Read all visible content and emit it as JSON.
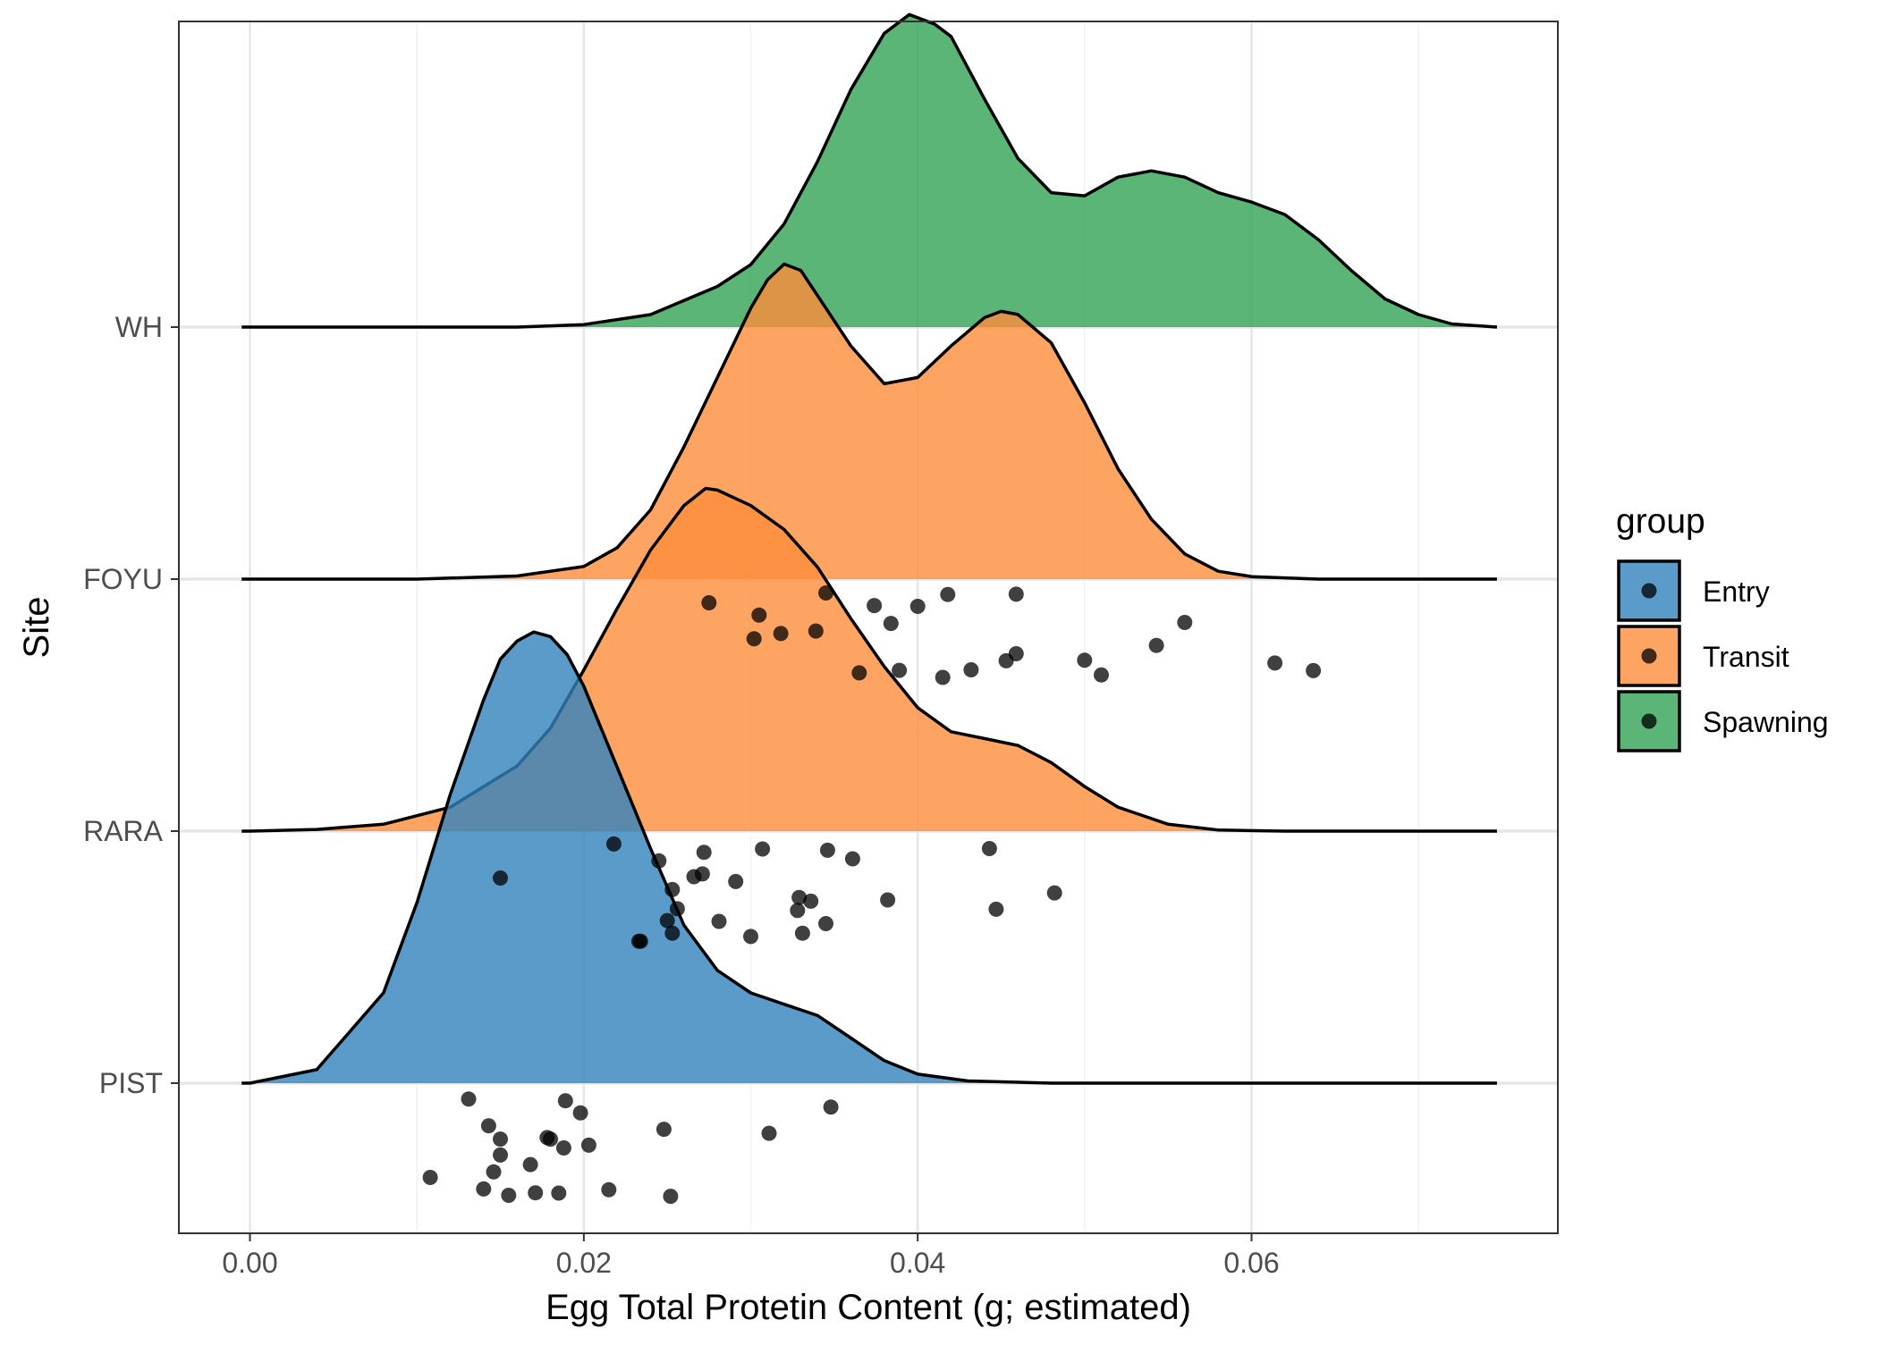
{
  "chart_data": {
    "type": "ridgeline",
    "xlabel": "Egg Total Protetin Content (g; estimated)",
    "ylabel": "Site",
    "xlim": [
      -0.0042,
      0.078
    ],
    "x_ticks": [
      0.0,
      0.02,
      0.04,
      0.06
    ],
    "x_tick_labels": [
      "0.00",
      "0.02",
      "0.04",
      "0.06"
    ],
    "categories": [
      "PIST",
      "RARA",
      "FOYU",
      "WH"
    ],
    "grid": true,
    "legend": {
      "title": "group",
      "position": "right",
      "entries": [
        {
          "name": "Entry",
          "color": "#3182bd"
        },
        {
          "name": "Transit",
          "color": "#fd8d3c"
        },
        {
          "name": "Spawning",
          "color": "#31a354"
        }
      ]
    },
    "density_x_range": [
      -0.0005,
      0.0747
    ],
    "series": [
      {
        "site": "PIST",
        "group": "Entry",
        "color": "#3182bd",
        "peak_height": 1.79,
        "density_profile": [
          [
            0.0,
            0.0
          ],
          [
            0.004,
            0.03
          ],
          [
            0.008,
            0.2
          ],
          [
            0.01,
            0.4
          ],
          [
            0.012,
            0.64
          ],
          [
            0.014,
            0.85
          ],
          [
            0.015,
            0.94
          ],
          [
            0.016,
            0.98
          ],
          [
            0.017,
            1.0
          ],
          [
            0.018,
            0.99
          ],
          [
            0.019,
            0.95
          ],
          [
            0.02,
            0.88
          ],
          [
            0.022,
            0.7
          ],
          [
            0.024,
            0.52
          ],
          [
            0.026,
            0.35
          ],
          [
            0.028,
            0.25
          ],
          [
            0.03,
            0.2
          ],
          [
            0.032,
            0.175
          ],
          [
            0.034,
            0.15
          ],
          [
            0.036,
            0.1
          ],
          [
            0.038,
            0.05
          ],
          [
            0.04,
            0.02
          ],
          [
            0.043,
            0.005
          ],
          [
            0.048,
            0.0
          ],
          [
            0.0747,
            0.0
          ]
        ],
        "points": [
          [
            0.0131,
            -0.063
          ],
          [
            0.0189,
            -0.07
          ],
          [
            0.0198,
            -0.118
          ],
          [
            0.0143,
            -0.169
          ],
          [
            0.015,
            -0.222
          ],
          [
            0.0178,
            -0.216
          ],
          [
            0.018,
            -0.222
          ],
          [
            0.0188,
            -0.257
          ],
          [
            0.0203,
            -0.246
          ],
          [
            0.015,
            -0.285
          ],
          [
            0.0168,
            -0.323
          ],
          [
            0.0146,
            -0.352
          ],
          [
            0.0108,
            -0.374
          ],
          [
            0.014,
            -0.42
          ],
          [
            0.0155,
            -0.445
          ],
          [
            0.0171,
            -0.435
          ],
          [
            0.0185,
            -0.436
          ],
          [
            0.0215,
            -0.423
          ],
          [
            0.0252,
            -0.449
          ],
          [
            0.0248,
            -0.183
          ],
          [
            0.0311,
            -0.199
          ],
          [
            0.0348,
            -0.095
          ]
        ]
      },
      {
        "site": "RARA",
        "group": "Transit",
        "color": "#fd8d3c",
        "peak_height": 1.36,
        "density_profile": [
          [
            0.0,
            0.0
          ],
          [
            0.004,
            0.005
          ],
          [
            0.008,
            0.02
          ],
          [
            0.012,
            0.07
          ],
          [
            0.016,
            0.19
          ],
          [
            0.018,
            0.3
          ],
          [
            0.02,
            0.47
          ],
          [
            0.022,
            0.65
          ],
          [
            0.024,
            0.82
          ],
          [
            0.026,
            0.95
          ],
          [
            0.0273,
            1.0
          ],
          [
            0.028,
            0.995
          ],
          [
            0.03,
            0.95
          ],
          [
            0.032,
            0.88
          ],
          [
            0.034,
            0.77
          ],
          [
            0.036,
            0.62
          ],
          [
            0.038,
            0.48
          ],
          [
            0.04,
            0.36
          ],
          [
            0.042,
            0.29
          ],
          [
            0.044,
            0.27
          ],
          [
            0.046,
            0.25
          ],
          [
            0.048,
            0.2
          ],
          [
            0.05,
            0.13
          ],
          [
            0.052,
            0.07
          ],
          [
            0.055,
            0.02
          ],
          [
            0.058,
            0.003
          ],
          [
            0.062,
            0.0
          ],
          [
            0.0747,
            0.0
          ]
        ],
        "points": [
          [
            0.0218,
            -0.051
          ],
          [
            0.0245,
            -0.118
          ],
          [
            0.015,
            -0.186
          ],
          [
            0.0272,
            -0.084
          ],
          [
            0.0307,
            -0.071
          ],
          [
            0.0346,
            -0.076
          ],
          [
            0.0361,
            -0.11
          ],
          [
            0.0443,
            -0.069
          ],
          [
            0.0266,
            -0.181
          ],
          [
            0.0271,
            -0.17
          ],
          [
            0.0291,
            -0.2
          ],
          [
            0.0253,
            -0.232
          ],
          [
            0.0256,
            -0.308
          ],
          [
            0.0329,
            -0.263
          ],
          [
            0.0336,
            -0.278
          ],
          [
            0.0382,
            -0.273
          ],
          [
            0.0447,
            -0.31
          ],
          [
            0.0482,
            -0.245
          ],
          [
            0.0328,
            -0.315
          ],
          [
            0.025,
            -0.355
          ],
          [
            0.0253,
            -0.405
          ],
          [
            0.0281,
            -0.358
          ],
          [
            0.03,
            -0.418
          ],
          [
            0.0331,
            -0.405
          ],
          [
            0.0345,
            -0.367
          ],
          [
            0.0233,
            -0.437
          ],
          [
            0.0234,
            -0.437
          ]
        ]
      },
      {
        "site": "FOYU",
        "group": "Transit",
        "color": "#fd8d3c",
        "peak_height": 1.25,
        "density_profile": [
          [
            0.0,
            0.0
          ],
          [
            0.01,
            0.0
          ],
          [
            0.016,
            0.01
          ],
          [
            0.02,
            0.04
          ],
          [
            0.022,
            0.1
          ],
          [
            0.024,
            0.22
          ],
          [
            0.026,
            0.42
          ],
          [
            0.028,
            0.64
          ],
          [
            0.03,
            0.86
          ],
          [
            0.031,
            0.95
          ],
          [
            0.032,
            1.0
          ],
          [
            0.033,
            0.98
          ],
          [
            0.034,
            0.9
          ],
          [
            0.036,
            0.74
          ],
          [
            0.038,
            0.62
          ],
          [
            0.04,
            0.64
          ],
          [
            0.042,
            0.74
          ],
          [
            0.044,
            0.83
          ],
          [
            0.045,
            0.85
          ],
          [
            0.046,
            0.84
          ],
          [
            0.048,
            0.75
          ],
          [
            0.05,
            0.56
          ],
          [
            0.052,
            0.35
          ],
          [
            0.054,
            0.19
          ],
          [
            0.056,
            0.08
          ],
          [
            0.058,
            0.025
          ],
          [
            0.06,
            0.008
          ],
          [
            0.064,
            0.0
          ],
          [
            0.0747,
            0.0
          ]
        ],
        "points": [
          [
            0.0374,
            -0.105
          ],
          [
            0.0384,
            -0.176
          ],
          [
            0.04,
            -0.108
          ],
          [
            0.0418,
            -0.061
          ],
          [
            0.0302,
            -0.237
          ],
          [
            0.0365,
            -0.372
          ],
          [
            0.0389,
            -0.362
          ],
          [
            0.0432,
            -0.36
          ],
          [
            0.0459,
            -0.296
          ],
          [
            0.051,
            -0.38
          ],
          [
            0.0543,
            -0.263
          ],
          [
            0.056,
            -0.172
          ],
          [
            0.0614,
            -0.333
          ],
          [
            0.0637,
            -0.363
          ],
          [
            0.0275,
            -0.094
          ],
          [
            0.0305,
            -0.143
          ],
          [
            0.0318,
            -0.216
          ],
          [
            0.0339,
            -0.206
          ],
          [
            0.0345,
            -0.055
          ],
          [
            0.0459,
            -0.06
          ],
          [
            0.0415,
            -0.39
          ],
          [
            0.0453,
            -0.324
          ],
          [
            0.05,
            -0.322
          ]
        ]
      },
      {
        "site": "WH",
        "group": "Spawning",
        "color": "#31a354",
        "peak_height": 1.24,
        "density_profile": [
          [
            0.0,
            0.0
          ],
          [
            0.016,
            0.0
          ],
          [
            0.02,
            0.008
          ],
          [
            0.024,
            0.04
          ],
          [
            0.028,
            0.13
          ],
          [
            0.03,
            0.2
          ],
          [
            0.032,
            0.33
          ],
          [
            0.034,
            0.53
          ],
          [
            0.036,
            0.76
          ],
          [
            0.038,
            0.94
          ],
          [
            0.0395,
            1.0
          ],
          [
            0.041,
            0.97
          ],
          [
            0.042,
            0.93
          ],
          [
            0.044,
            0.73
          ],
          [
            0.046,
            0.54
          ],
          [
            0.048,
            0.43
          ],
          [
            0.05,
            0.42
          ],
          [
            0.052,
            0.48
          ],
          [
            0.054,
            0.5
          ],
          [
            0.056,
            0.48
          ],
          [
            0.058,
            0.43
          ],
          [
            0.06,
            0.4
          ],
          [
            0.062,
            0.36
          ],
          [
            0.064,
            0.28
          ],
          [
            0.066,
            0.18
          ],
          [
            0.068,
            0.09
          ],
          [
            0.07,
            0.04
          ],
          [
            0.072,
            0.01
          ],
          [
            0.0747,
            0.0
          ]
        ]
      }
    ]
  }
}
